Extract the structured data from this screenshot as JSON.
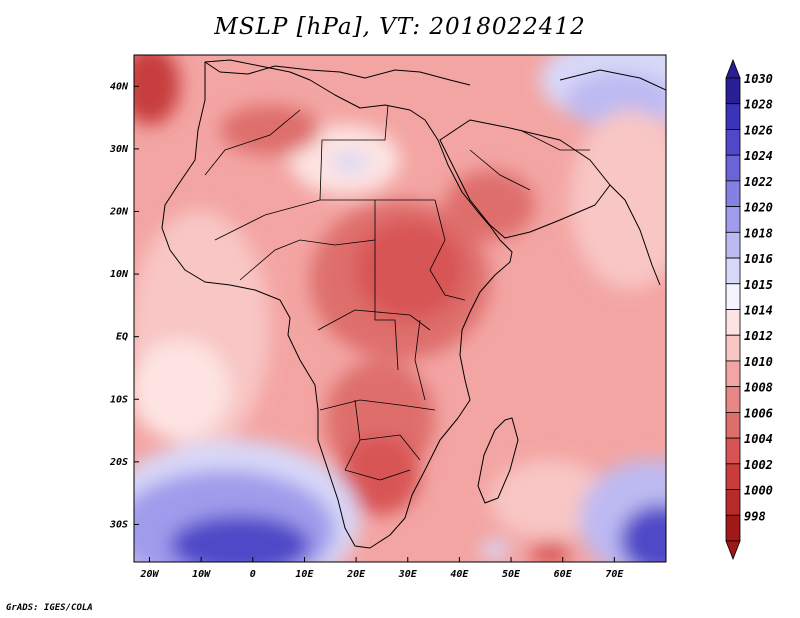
{
  "title": "MSLP [hPa], VT: 2018022412",
  "footer": "GrADS: IGES/COLA",
  "map": {
    "region": "Africa and surroundings",
    "lon_range": [
      -23,
      80
    ],
    "lat_range": [
      -36,
      45
    ],
    "x_ticks": [
      {
        "value": -20,
        "label": "20W"
      },
      {
        "value": -10,
        "label": "10W"
      },
      {
        "value": 0,
        "label": "0"
      },
      {
        "value": 10,
        "label": "10E"
      },
      {
        "value": 20,
        "label": "20E"
      },
      {
        "value": 30,
        "label": "30E"
      },
      {
        "value": 40,
        "label": "40E"
      },
      {
        "value": 50,
        "label": "50E"
      },
      {
        "value": 60,
        "label": "60E"
      },
      {
        "value": 70,
        "label": "70E"
      }
    ],
    "y_ticks": [
      {
        "value": 40,
        "label": "40N"
      },
      {
        "value": 30,
        "label": "30N"
      },
      {
        "value": 20,
        "label": "20N"
      },
      {
        "value": 10,
        "label": "10N"
      },
      {
        "value": 0,
        "label": "EQ"
      },
      {
        "value": -10,
        "label": "10S"
      },
      {
        "value": -20,
        "label": "20S"
      },
      {
        "value": -30,
        "label": "30S"
      }
    ],
    "background_color": "#f3a5a3"
  },
  "colorbar": {
    "levels": [
      "1030",
      "1028",
      "1026",
      "1024",
      "1022",
      "1020",
      "1018",
      "1016",
      "1015",
      "1014",
      "1012",
      "1010",
      "1008",
      "1006",
      "1004",
      "1002",
      "1000",
      "998"
    ],
    "colors": [
      "#2a1e96",
      "#3a34b8",
      "#5048c8",
      "#6a64d8",
      "#8580e4",
      "#a09cec",
      "#bdbaf2",
      "#d8d8f8",
      "#f4f4ff",
      "#fde4e2",
      "#f8c6c4",
      "#f3a5a3",
      "#e88886",
      "#de6e6c",
      "#d85454",
      "#c83c3c",
      "#b92a2a",
      "#a01818"
    ]
  }
}
